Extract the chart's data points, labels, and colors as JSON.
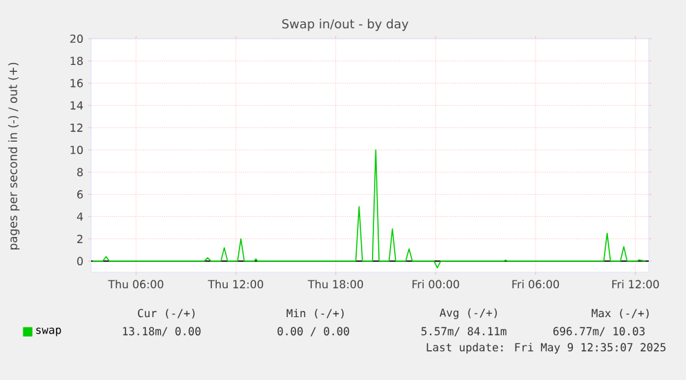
{
  "chart_data": {
    "type": "line",
    "title": "Swap in/out - by day",
    "ylabel": "pages per second in (-) / out (+)",
    "x": [
      "2025-05-08T03:24",
      "2025-05-08T04:00",
      "2025-05-08T04:12",
      "2025-05-08T04:24",
      "2025-05-08T10:06",
      "2025-05-08T10:18",
      "2025-05-08T10:30",
      "2025-05-08T11:06",
      "2025-05-08T11:18",
      "2025-05-08T11:30",
      "2025-05-08T12:06",
      "2025-05-08T12:18",
      "2025-05-08T12:30",
      "2025-05-08T13:06",
      "2025-05-08T13:12",
      "2025-05-08T13:18",
      "2025-05-08T19:12",
      "2025-05-08T19:24",
      "2025-05-08T19:36",
      "2025-05-08T20:12",
      "2025-05-08T20:24",
      "2025-05-08T20:36",
      "2025-05-08T21:12",
      "2025-05-08T21:24",
      "2025-05-08T21:36",
      "2025-05-08T22:12",
      "2025-05-08T22:24",
      "2025-05-08T22:36",
      "2025-05-08T23:54",
      "2025-05-09T00:06",
      "2025-05-09T00:18",
      "2025-05-09T04:06",
      "2025-05-09T04:12",
      "2025-05-09T04:18",
      "2025-05-09T10:06",
      "2025-05-09T10:18",
      "2025-05-09T10:30",
      "2025-05-09T11:06",
      "2025-05-09T11:18",
      "2025-05-09T11:30",
      "2025-05-09T12:06",
      "2025-05-09T12:12",
      "2025-05-09T12:36"
    ],
    "series": [
      {
        "name": "swap",
        "color": "#00cc00",
        "values": [
          0,
          0,
          0.4,
          0,
          0,
          0.3,
          0,
          0,
          1.2,
          0,
          0,
          2.0,
          0,
          0,
          0.2,
          0,
          0,
          4.9,
          0,
          0,
          10.0,
          0,
          0,
          2.9,
          0,
          0,
          1.1,
          0,
          0,
          -0.6,
          0,
          0,
          0.1,
          0,
          0,
          2.5,
          0,
          0,
          1.3,
          0,
          0,
          0.1,
          0
        ]
      }
    ],
    "xlim": [
      "2025-05-08T03:18",
      "2025-05-09T12:48"
    ],
    "xticks": [
      {
        "value": "2025-05-08T06:00",
        "label": "Thu 06:00"
      },
      {
        "value": "2025-05-08T12:00",
        "label": "Thu 12:00"
      },
      {
        "value": "2025-05-08T18:00",
        "label": "Thu 18:00"
      },
      {
        "value": "2025-05-09T00:00",
        "label": "Fri 00:00"
      },
      {
        "value": "2025-05-09T06:00",
        "label": "Fri 06:00"
      },
      {
        "value": "2025-05-09T12:00",
        "label": "Fri 12:00"
      }
    ],
    "ylim": [
      -1,
      20
    ],
    "yticks": [
      0,
      2,
      4,
      6,
      8,
      10,
      12,
      14,
      16,
      18,
      20
    ],
    "grid": true,
    "legend": "bottom left",
    "marker": "none",
    "line_style": "solid",
    "annotations": [
      "Cur (-/+)",
      "Min (-/+)",
      "Avg (-/+)",
      "Max (-/+)",
      "13.18m/ 0.00",
      "0.00 / 0.00",
      "5.57m/ 84.11m",
      "696.77m/ 10.03",
      "Last update: Fri May 9 12:35:07 2025"
    ]
  }
}
